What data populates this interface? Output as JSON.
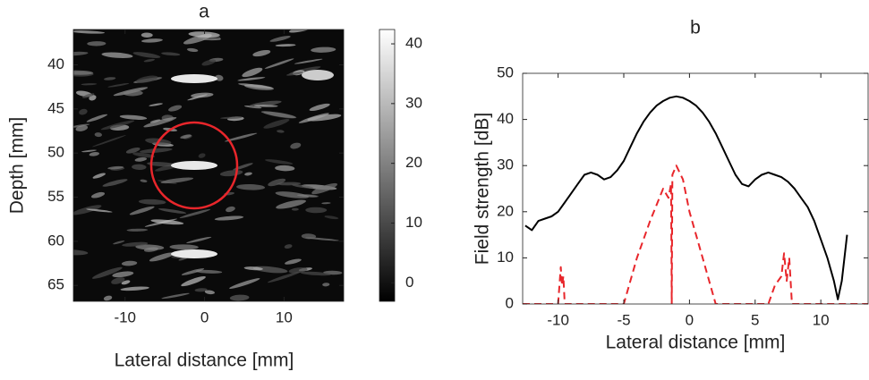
{
  "chart_data": [
    {
      "type": "image",
      "title": "a",
      "xlabel": "Lateral distance [mm]",
      "ylabel": "Depth [mm]",
      "xlim": [
        -16.5,
        17.5
      ],
      "xticks": [
        -10,
        0,
        10
      ],
      "ylim": [
        66.8,
        36
      ],
      "yticks": [
        40,
        45,
        50,
        55,
        60,
        65
      ],
      "colorbar": {
        "clim": [
          -3.1,
          42.4
        ],
        "ticks": [
          0,
          10,
          20,
          30,
          40
        ]
      }
    },
    {
      "type": "line",
      "title": "b",
      "xlabel": "Lateral distance [mm]",
      "ylabel": "Field strength [dB]",
      "xlim": [
        -12.7,
        13.6
      ],
      "xticks": [
        -10,
        -5,
        0,
        5,
        10
      ],
      "ylim": [
        0,
        50
      ],
      "yticks": [
        0,
        10,
        20,
        30,
        40,
        50
      ],
      "series": [
        {
          "color": "#000000",
          "dash": false,
          "x": [
            -12.5,
            -12,
            -11.5,
            -11,
            -10.5,
            -10,
            -9.5,
            -9,
            -8.5,
            -8,
            -7.5,
            -7,
            -6.5,
            -6,
            -5.5,
            -5,
            -4.5,
            -4,
            -3.5,
            -3,
            -2.5,
            -2,
            -1.5,
            -1,
            -0.5,
            0,
            0.5,
            1,
            1.5,
            2,
            2.5,
            3,
            3.5,
            4,
            4.5,
            5,
            5.5,
            6,
            6.5,
            7,
            7.5,
            8,
            8.5,
            9,
            9.5,
            10,
            10.5,
            11,
            11.3,
            11.6,
            12
          ],
          "values": [
            17,
            16,
            18,
            18.5,
            19,
            20,
            22,
            24,
            26,
            28,
            28.5,
            28,
            27,
            27.5,
            29,
            31,
            34,
            37,
            39.5,
            41.5,
            43,
            44,
            44.7,
            45,
            44.7,
            44,
            43,
            41.5,
            39.5,
            37,
            34,
            31,
            28,
            26,
            25.5,
            27,
            28,
            28.5,
            28,
            27.5,
            26.5,
            25,
            23,
            21,
            18,
            14,
            10,
            5,
            1,
            5,
            15
          ]
        },
        {
          "color": "#e8262b",
          "dash": true,
          "x": [
            -12.7,
            -10,
            -9.8,
            -9.7,
            -9.6,
            -9.5,
            -5,
            -4,
            -3,
            -2,
            -1.6,
            -1.4,
            -1.35,
            -1.3,
            -1,
            -0.5,
            0,
            1,
            2,
            6,
            6.5,
            7,
            7.2,
            7.4,
            7.6,
            7.8,
            13.6
          ],
          "values": [
            0,
            0,
            8,
            4,
            6,
            0,
            0,
            10,
            18,
            25,
            23,
            26,
            0,
            28,
            30,
            27,
            20,
            10,
            0,
            0,
            4,
            6,
            11,
            5,
            10,
            0,
            0
          ]
        }
      ]
    }
  ]
}
